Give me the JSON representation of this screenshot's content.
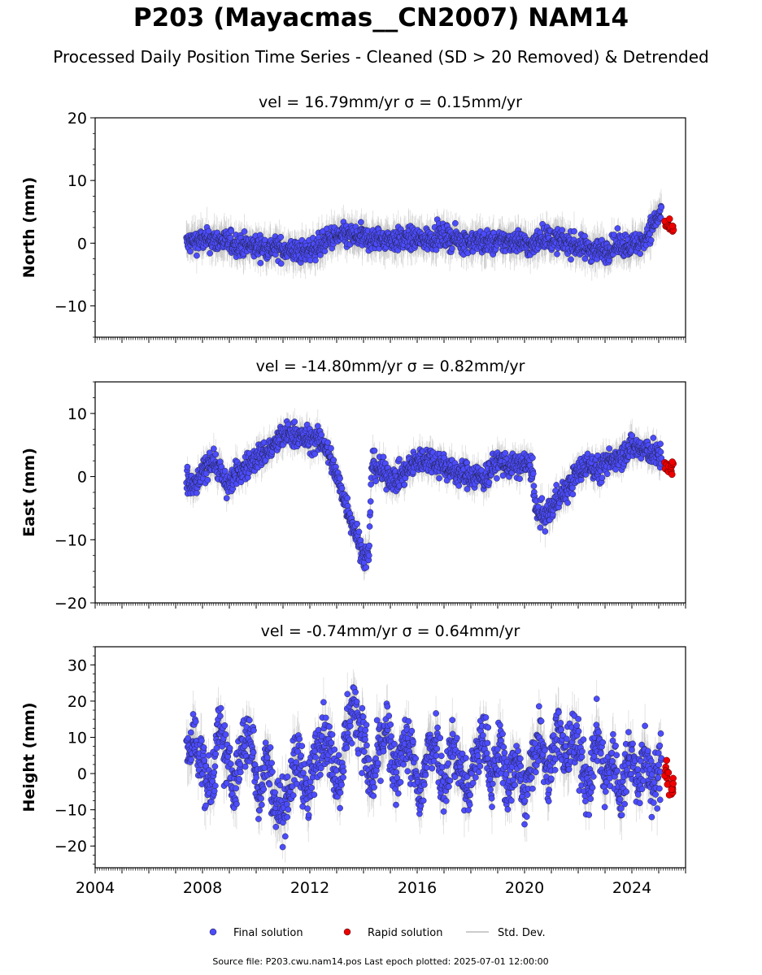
{
  "title": "P203 (Mayacmas__CN2007) NAM14",
  "subtitle": "Processed Daily Position Time Series - Cleaned (SD > 20 Removed) & Detrended",
  "footer": "Source file: P203.cwu.nam14.pos  Last epoch plotted: 2025-07-01 12:00:00",
  "colors": {
    "final": "#4c4cff",
    "rapid": "#ee0000",
    "stddev": "#999999"
  },
  "chart_data": [
    {
      "type": "scatter",
      "title": "vel = 16.79mm/yr   σ = 0.15mm/yr",
      "ylabel": "North (mm)",
      "ylim": [
        -15,
        20
      ],
      "yticks": [
        20,
        10,
        0,
        -10
      ],
      "xlim": [
        2004,
        2026
      ],
      "series": [
        {
          "name": "Final solution",
          "points": [
            [
              2007.4,
              0
            ],
            [
              2007.8,
              0.4
            ],
            [
              2008.3,
              0.5
            ],
            [
              2008.8,
              0.3
            ],
            [
              2009.3,
              -0.2
            ],
            [
              2009.8,
              -0.5
            ],
            [
              2010.3,
              -0.6
            ],
            [
              2010.8,
              -0.8
            ],
            [
              2011.3,
              -1.2
            ],
            [
              2011.8,
              -1.5
            ],
            [
              2012.3,
              -0.5
            ],
            [
              2012.8,
              0.8
            ],
            [
              2013.3,
              1.2
            ],
            [
              2013.8,
              1.0
            ],
            [
              2014.3,
              0.6
            ],
            [
              2014.8,
              0.7
            ],
            [
              2015.3,
              0.5
            ],
            [
              2015.8,
              0.7
            ],
            [
              2016.3,
              0.5
            ],
            [
              2016.8,
              1.2
            ],
            [
              2017.3,
              0.8
            ],
            [
              2017.8,
              0.2
            ],
            [
              2018.3,
              0.3
            ],
            [
              2018.8,
              0
            ],
            [
              2019.3,
              0.3
            ],
            [
              2019.8,
              0.4
            ],
            [
              2020.3,
              -0.7
            ],
            [
              2020.6,
              1.2
            ],
            [
              2021.0,
              0.6
            ],
            [
              2021.5,
              0.2
            ],
            [
              2022.0,
              -0.5
            ],
            [
              2022.5,
              -1.0
            ],
            [
              2023.0,
              -1.2
            ],
            [
              2023.5,
              -0.2
            ],
            [
              2024.0,
              -0.3
            ],
            [
              2024.4,
              0.2
            ],
            [
              2024.8,
              3.0
            ],
            [
              2025.1,
              5.0
            ]
          ]
        },
        {
          "name": "Rapid solution",
          "points": [
            [
              2025.3,
              3.0
            ],
            [
              2025.4,
              2.5
            ],
            [
              2025.5,
              2.0
            ]
          ]
        }
      ]
    },
    {
      "type": "scatter",
      "title": "vel = -14.80mm/yr   σ = 0.82mm/yr",
      "ylabel": "East (mm)",
      "ylim": [
        -20,
        15
      ],
      "yticks": [
        10,
        0,
        -10,
        -20
      ],
      "xlim": [
        2004,
        2026
      ],
      "series": [
        {
          "name": "Final solution",
          "points": [
            [
              2007.4,
              -0.8
            ],
            [
              2007.7,
              -1.8
            ],
            [
              2008.0,
              0.5
            ],
            [
              2008.3,
              2.8
            ],
            [
              2008.6,
              1.5
            ],
            [
              2008.9,
              -1.5
            ],
            [
              2009.3,
              0.5
            ],
            [
              2009.7,
              1.8
            ],
            [
              2010.2,
              3.5
            ],
            [
              2010.6,
              4.5
            ],
            [
              2011.0,
              6.5
            ],
            [
              2011.4,
              6.8
            ],
            [
              2011.8,
              6.0
            ],
            [
              2012.2,
              5.8
            ],
            [
              2012.5,
              5.5
            ],
            [
              2012.8,
              2.5
            ],
            [
              2013.2,
              -2.5
            ],
            [
              2013.6,
              -7.5
            ],
            [
              2014.0,
              -12.5
            ],
            [
              2014.2,
              -12.8
            ],
            [
              2014.3,
              2.0
            ],
            [
              2014.8,
              0.5
            ],
            [
              2015.2,
              -0.5
            ],
            [
              2015.6,
              0.8
            ],
            [
              2016.0,
              2.5
            ],
            [
              2016.5,
              2.8
            ],
            [
              2017.0,
              1.8
            ],
            [
              2017.5,
              0.5
            ],
            [
              2018.0,
              0.3
            ],
            [
              2018.5,
              -0.3
            ],
            [
              2019.0,
              2.5
            ],
            [
              2019.5,
              1.5
            ],
            [
              2019.9,
              2.0
            ],
            [
              2020.3,
              1.5
            ],
            [
              2020.4,
              -5.5
            ],
            [
              2020.8,
              -6.5
            ],
            [
              2021.2,
              -3.5
            ],
            [
              2021.6,
              -2.0
            ],
            [
              2022.0,
              0.8
            ],
            [
              2022.4,
              2.0
            ],
            [
              2022.8,
              1.0
            ],
            [
              2023.2,
              2.5
            ],
            [
              2023.6,
              3.5
            ],
            [
              2024.0,
              4.8
            ],
            [
              2024.4,
              4.2
            ],
            [
              2024.8,
              3.8
            ],
            [
              2025.1,
              2.8
            ]
          ]
        },
        {
          "name": "Rapid solution",
          "points": [
            [
              2025.3,
              2.0
            ],
            [
              2025.4,
              1.0
            ],
            [
              2025.5,
              1.5
            ]
          ]
        }
      ]
    },
    {
      "type": "scatter",
      "title": "vel = -0.74mm/yr   σ = 0.64mm/yr",
      "ylabel": "Height (mm)",
      "ylim": [
        -26,
        35
      ],
      "yticks": [
        30,
        20,
        10,
        0,
        -10,
        -20
      ],
      "xlim": [
        2004,
        2026
      ],
      "xticks": [
        2004,
        2008,
        2012,
        2016,
        2020,
        2024
      ],
      "series": [
        {
          "name": "Final solution",
          "points": [
            [
              2007.4,
              5
            ],
            [
              2007.7,
              10
            ],
            [
              2008.0,
              2
            ],
            [
              2008.3,
              -5
            ],
            [
              2008.6,
              12
            ],
            [
              2008.9,
              4
            ],
            [
              2009.2,
              -4
            ],
            [
              2009.5,
              8
            ],
            [
              2009.8,
              10
            ],
            [
              2010.1,
              -6
            ],
            [
              2010.4,
              5
            ],
            [
              2010.7,
              -8
            ],
            [
              2011.0,
              -10
            ],
            [
              2011.3,
              -2
            ],
            [
              2011.6,
              6
            ],
            [
              2011.9,
              -8
            ],
            [
              2012.2,
              4
            ],
            [
              2012.5,
              12
            ],
            [
              2012.8,
              5
            ],
            [
              2013.1,
              -3
            ],
            [
              2013.4,
              14
            ],
            [
              2013.7,
              18
            ],
            [
              2014.0,
              10
            ],
            [
              2014.3,
              -5
            ],
            [
              2014.6,
              8
            ],
            [
              2014.9,
              12
            ],
            [
              2015.2,
              -3
            ],
            [
              2015.5,
              10
            ],
            [
              2015.8,
              5
            ],
            [
              2016.1,
              -8
            ],
            [
              2016.4,
              6
            ],
            [
              2016.7,
              10
            ],
            [
              2017.0,
              -4
            ],
            [
              2017.3,
              8
            ],
            [
              2017.6,
              2
            ],
            [
              2017.9,
              -6
            ],
            [
              2018.2,
              5
            ],
            [
              2018.5,
              10
            ],
            [
              2018.8,
              -2
            ],
            [
              2019.1,
              8
            ],
            [
              2019.4,
              -5
            ],
            [
              2019.7,
              6
            ],
            [
              2020.0,
              -8
            ],
            [
              2020.3,
              4
            ],
            [
              2020.6,
              12
            ],
            [
              2020.9,
              -2
            ],
            [
              2021.2,
              14
            ],
            [
              2021.5,
              3
            ],
            [
              2021.8,
              10
            ],
            [
              2022.1,
              5
            ],
            [
              2022.4,
              -6
            ],
            [
              2022.7,
              12
            ],
            [
              2023.0,
              -2
            ],
            [
              2023.3,
              5
            ],
            [
              2023.6,
              -8
            ],
            [
              2023.9,
              8
            ],
            [
              2024.2,
              -3
            ],
            [
              2024.5,
              5
            ],
            [
              2024.8,
              -5
            ],
            [
              2025.1,
              3
            ]
          ]
        },
        {
          "name": "Rapid solution",
          "points": [
            [
              2025.3,
              1
            ],
            [
              2025.4,
              -2
            ],
            [
              2025.5,
              -4
            ]
          ]
        }
      ]
    }
  ],
  "legend": [
    {
      "label": "Final solution",
      "kind": "marker",
      "color": "#4c4cff"
    },
    {
      "label": "Rapid solution",
      "kind": "marker",
      "color": "#ee0000"
    },
    {
      "label": "Std. Dev.",
      "kind": "line",
      "color": "#bbbbbb"
    }
  ]
}
